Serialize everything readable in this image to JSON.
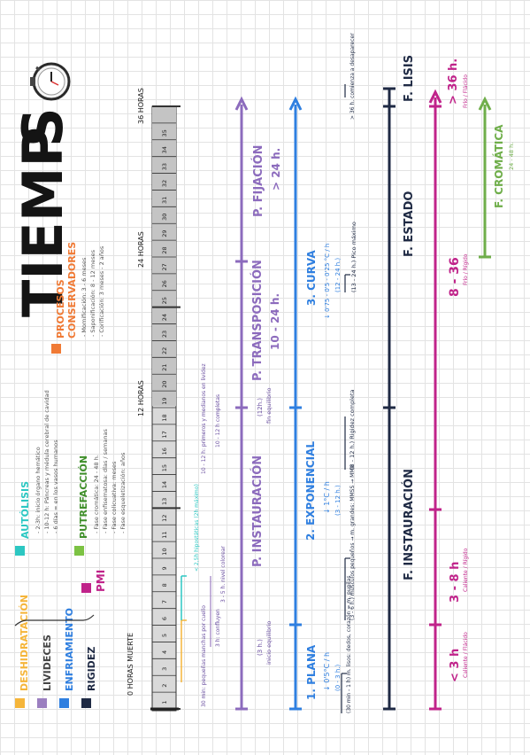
{
  "title": {
    "prefix": "TIEMP",
    "suffix": "S"
  },
  "timeline": {
    "start": "0 HORAS MUERTE",
    "h12": "12 HORAS",
    "h24": "24 HORAS",
    "h36": "36 HORAS",
    "hours": [
      "1",
      "2",
      "3",
      "4",
      "5",
      "6",
      "7",
      "8",
      "9",
      "10",
      "11",
      "12",
      "13",
      "14",
      "15",
      "16",
      "17",
      "18",
      "19",
      "20",
      "21",
      "22",
      "23",
      "24",
      "25",
      "26",
      "27",
      "28",
      "29",
      "30",
      "31",
      "32",
      "33",
      "34",
      "35"
    ]
  },
  "legend": {
    "deshidratacion": "DESHIDRATACIÓN",
    "livideces": "LIVIDECES",
    "enfriamiento": "ENFRIAMIENTO",
    "rigidez": "RIGIDEZ",
    "pmi": "PMI",
    "autolisis": "AUTÓLISIS",
    "autolisis_items": [
      "- 2-3h: inicio órgano hemático",
      "- 10-12 h: Páncreas y médula cerebral de cavidad",
      "- 6 días = en los vasos humanos"
    ],
    "putrefaccion": "PUTREFACCIÓN",
    "putrefaccion_items": [
      "- Fase cromática: 24 - 48 h.",
      "- Fase enfisematosa: días / semanas",
      "- Fase colicuativa: meses",
      "- Fase esqueletización: años"
    ],
    "procesos": "PROCESOS",
    "conservadores": "CONSERVADORES",
    "procesos_items": [
      "- Momificación: 3 - 6 meses",
      "- Saponificación: 8 - 12 meses",
      "- Corificación: 3 meses - 2 años"
    ],
    "colors": {
      "deshidratacion": "#f5b53a",
      "livideces": "#9b7fc0",
      "enfriamiento": "#2f7fe0",
      "rigidez": "#1f2a44",
      "pmi": "#c0238a",
      "autolisis": "#2cc7c2",
      "putrefaccion": "#7cc243",
      "procesos": "#f07a35"
    }
  },
  "livideces": {
    "note_start": "30 min: pequeñas manchas por cuello",
    "note_3h": "3 h: confluyen",
    "note_5h": "3 - 5 h. nivel colorear",
    "note_2h": "< 2,5h hipostáticas (2h máximo)",
    "instauracion": "P. INSTAURACIÓN",
    "instauracion_sub": "(3 h.)",
    "instauracion_sub2": "inicio equilibrio",
    "transposicion": "P. TRANSPOSICIÓN",
    "transposicion_val": "10 - 24 h.",
    "transposicion_sub": "(12h.)",
    "transposicion_sub2": "fin equilibrio",
    "fijacion": "P. FIJACIÓN",
    "fijacion_val": "> 24 h.",
    "note_10h": "10 - 12 h: primeros y medianos en lividez",
    "note_12h": "10 - 12 h completas"
  },
  "enfriamiento": {
    "plana": "1. PLANA",
    "plana_rate": "↓ 0'5°C / h",
    "plana_time": "(0 - 3 h.)",
    "exponencial": "2. EXPONENCIAL",
    "exponencial_rate": "↓ 1°C / h",
    "exponencial_time": "(3 - 12 h.)",
    "curva": "3. CURVA",
    "curva_rate": "↓ 0'75 - 0'5 - 0'25 °C / h",
    "curva_time": "(12 - 24 h.)",
    "note_30min": "(30 min - 1 h) m. lisos: dedos, corazón = m. pupilas",
    "note_6h": "(3 - 6 h.) músculos pequeños → m. grandes: MMSS → MMII",
    "note_8h": "(8 - 12 h.) Rigidez completa",
    "note_13h": "(13 - 24 h.) Pico máximo",
    "note_36h": "> 36 h. comienza a desaparecer"
  },
  "rigidez": {
    "instauracion": "F. INSTAURACIÓN",
    "estado": "F. ESTADO",
    "lisis": "F. LISIS"
  },
  "pmi": {
    "t1": "< 3 h",
    "t1_sub": "Caliente / Flácido",
    "t2": "3 - 8 h",
    "t2_sub": "Caliente / Rígido",
    "t3": "8 - 36",
    "t3_sub": "Frío / Rígido",
    "t4": "> 36 h.",
    "t4_sub": "Frío / Flácido"
  },
  "putrefaccion_bar": {
    "label": "F. CROMÁTICA",
    "sub": "24 - 48 h."
  }
}
